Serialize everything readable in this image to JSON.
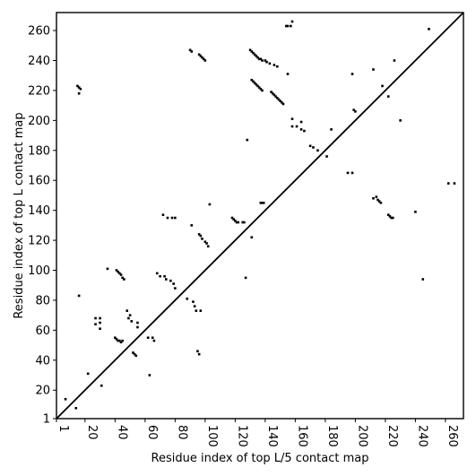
{
  "chart_data": {
    "type": "scatter",
    "title": "",
    "xlabel": "Residue index of top L/5 contact map",
    "ylabel": "Residue index of top L contact map",
    "xlim": [
      1,
      272
    ],
    "ylim": [
      1,
      272
    ],
    "x_ticks": [
      1,
      20,
      40,
      60,
      80,
      100,
      120,
      140,
      160,
      180,
      200,
      220,
      240,
      260
    ],
    "x_tick_labels": [
      "1",
      "20",
      "40",
      "60",
      "80",
      "100",
      "120",
      "140",
      "160",
      "180",
      "200",
      "220",
      "240",
      "260"
    ],
    "y_ticks": [
      1,
      20,
      40,
      60,
      80,
      100,
      120,
      140,
      160,
      180,
      200,
      220,
      240,
      260
    ],
    "y_tick_labels": [
      "1",
      "20",
      "40",
      "60",
      "80",
      "100",
      "120",
      "140",
      "160",
      "180",
      "200",
      "220",
      "240",
      "260"
    ],
    "grid": false,
    "diagonal": [
      [
        1,
        1
      ],
      [
        272,
        272
      ]
    ],
    "series": [
      {
        "values": [
          [
            7,
            14
          ],
          [
            14,
            8
          ],
          [
            15,
            223
          ],
          [
            16,
            222
          ],
          [
            17,
            221
          ],
          [
            16,
            218
          ],
          [
            16,
            83
          ],
          [
            22,
            31
          ],
          [
            27,
            68
          ],
          [
            27,
            64
          ],
          [
            30,
            68
          ],
          [
            30,
            65
          ],
          [
            30,
            61
          ],
          [
            31,
            23
          ],
          [
            35,
            101
          ],
          [
            40,
            55
          ],
          [
            41,
            54
          ],
          [
            42,
            53
          ],
          [
            43,
            53
          ],
          [
            44,
            52
          ],
          [
            45,
            53
          ],
          [
            41,
            100
          ],
          [
            42,
            99
          ],
          [
            43,
            98
          ],
          [
            44,
            97
          ],
          [
            45,
            95
          ],
          [
            46,
            94
          ],
          [
            48,
            73
          ],
          [
            50,
            70
          ],
          [
            49,
            68
          ],
          [
            51,
            66
          ],
          [
            52,
            45
          ],
          [
            53,
            44
          ],
          [
            54,
            43
          ],
          [
            55,
            65
          ],
          [
            55,
            62
          ],
          [
            62,
            55
          ],
          [
            63,
            30
          ],
          [
            65,
            55
          ],
          [
            66,
            53
          ],
          [
            68,
            98
          ],
          [
            70,
            96
          ],
          [
            72,
            137
          ],
          [
            73,
            96
          ],
          [
            74,
            94
          ],
          [
            77,
            93
          ],
          [
            79,
            91
          ],
          [
            80,
            88
          ],
          [
            75,
            135
          ],
          [
            78,
            135
          ],
          [
            80,
            135
          ],
          [
            88,
            81
          ],
          [
            90,
            247
          ],
          [
            91,
            246
          ],
          [
            91,
            130
          ],
          [
            92,
            79
          ],
          [
            93,
            76
          ],
          [
            94,
            73
          ],
          [
            95,
            46
          ],
          [
            97,
            73
          ],
          [
            96,
            44
          ],
          [
            96,
            124
          ],
          [
            97,
            123
          ],
          [
            98,
            121
          ],
          [
            100,
            119
          ],
          [
            101,
            118
          ],
          [
            102,
            116
          ],
          [
            103,
            144
          ],
          [
            96,
            244
          ],
          [
            97,
            243
          ],
          [
            98,
            242
          ],
          [
            99,
            241
          ],
          [
            100,
            240
          ],
          [
            118,
            135
          ],
          [
            119,
            134
          ],
          [
            120,
            133
          ],
          [
            121,
            132
          ],
          [
            122,
            132
          ],
          [
            125,
            132
          ],
          [
            126,
            132
          ],
          [
            127,
            95
          ],
          [
            128,
            187
          ],
          [
            130,
            247
          ],
          [
            131,
            246
          ],
          [
            132,
            245
          ],
          [
            133,
            244
          ],
          [
            134,
            243
          ],
          [
            135,
            242
          ],
          [
            136,
            241
          ],
          [
            137,
            241
          ],
          [
            138,
            240
          ],
          [
            131,
            227
          ],
          [
            132,
            226
          ],
          [
            133,
            225
          ],
          [
            134,
            224
          ],
          [
            135,
            223
          ],
          [
            136,
            222
          ],
          [
            137,
            221
          ],
          [
            138,
            220
          ],
          [
            131,
            122
          ],
          [
            137,
            145
          ],
          [
            138,
            145
          ],
          [
            139,
            145
          ],
          [
            140,
            240
          ],
          [
            141,
            239
          ],
          [
            143,
            238
          ],
          [
            146,
            237
          ],
          [
            148,
            236
          ],
          [
            144,
            219
          ],
          [
            145,
            218
          ],
          [
            146,
            217
          ],
          [
            147,
            216
          ],
          [
            148,
            215
          ],
          [
            149,
            214
          ],
          [
            150,
            213
          ],
          [
            151,
            212
          ],
          [
            152,
            211
          ],
          [
            154,
            263
          ],
          [
            155,
            263
          ],
          [
            157,
            263
          ],
          [
            158,
            266
          ],
          [
            158,
            201
          ],
          [
            158,
            196
          ],
          [
            161,
            196
          ],
          [
            164,
            199
          ],
          [
            164,
            194
          ],
          [
            166,
            193
          ],
          [
            155,
            231
          ],
          [
            170,
            183
          ],
          [
            172,
            182
          ],
          [
            175,
            180
          ],
          [
            181,
            176
          ],
          [
            184,
            194
          ],
          [
            195,
            165
          ],
          [
            198,
            165
          ],
          [
            198,
            231
          ],
          [
            199,
            207
          ],
          [
            200,
            206
          ],
          [
            212,
            234
          ],
          [
            212,
            148
          ],
          [
            214,
            149
          ],
          [
            215,
            147
          ],
          [
            216,
            146
          ],
          [
            217,
            145
          ],
          [
            218,
            223
          ],
          [
            222,
            216
          ],
          [
            222,
            137
          ],
          [
            223,
            136
          ],
          [
            224,
            135
          ],
          [
            225,
            135
          ],
          [
            226,
            240
          ],
          [
            230,
            200
          ],
          [
            240,
            139
          ],
          [
            245,
            94
          ],
          [
            249,
            261
          ],
          [
            262,
            158
          ],
          [
            266,
            158
          ]
        ]
      }
    ]
  }
}
